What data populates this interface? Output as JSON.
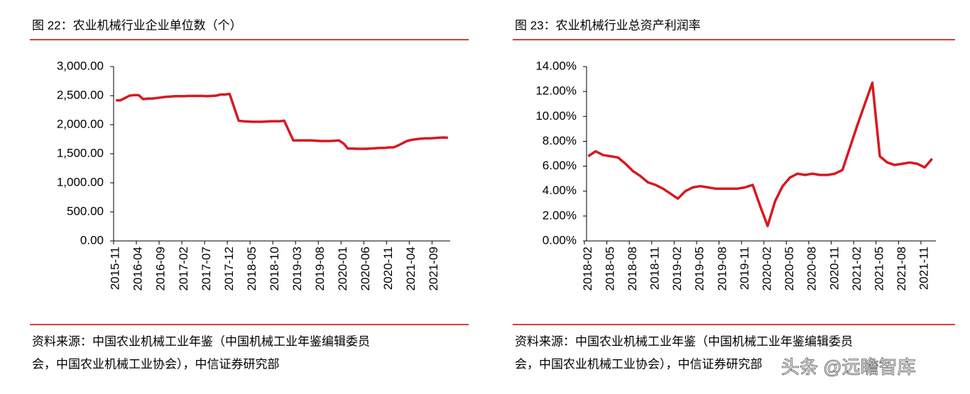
{
  "chart_data": [
    {
      "type": "line",
      "title": "图 22：农业机械行业企业单位数（个）",
      "categories": [
        "2015-11",
        null,
        null,
        null,
        null,
        "2016-04",
        null,
        null,
        null,
        null,
        "2016-09",
        null,
        null,
        null,
        null,
        "2017-02",
        null,
        null,
        null,
        null,
        "2017-07",
        null,
        null,
        null,
        null,
        "2017-12",
        null,
        null,
        null,
        null,
        "2018-05",
        null,
        null,
        null,
        null,
        "2018-10",
        null,
        null,
        null,
        null,
        "2019-03",
        null,
        null,
        null,
        null,
        "2019-08",
        null,
        null,
        null,
        null,
        "2020-01",
        null,
        null,
        null,
        null,
        "2020-06",
        null,
        null,
        null,
        null,
        "2020-11",
        null,
        null,
        null,
        null,
        "2021-04",
        null,
        null,
        null,
        null,
        "2021-09",
        null,
        null,
        null
      ],
      "values": [
        2420,
        2420,
        2460,
        2500,
        2510,
        2510,
        2440,
        2450,
        2450,
        2460,
        2470,
        2480,
        2485,
        2490,
        2490,
        2490,
        2495,
        2495,
        2495,
        2495,
        2490,
        2495,
        2500,
        2520,
        2520,
        2530,
        2300,
        2070,
        2060,
        2055,
        2050,
        2050,
        2050,
        2055,
        2060,
        2060,
        2060,
        2070,
        1900,
        1730,
        1730,
        1730,
        1730,
        1730,
        1725,
        1720,
        1720,
        1720,
        1725,
        1730,
        1680,
        1590,
        1590,
        1585,
        1585,
        1585,
        1590,
        1595,
        1600,
        1600,
        1610,
        1610,
        1640,
        1680,
        1720,
        1740,
        1750,
        1760,
        1765,
        1765,
        1770,
        1775,
        1780,
        1775
      ],
      "color": "#d71920",
      "ylim": [
        0,
        3000
      ],
      "yticks": [
        {
          "value": 0,
          "label": "0.00"
        },
        {
          "value": 500,
          "label": "500.00"
        },
        {
          "value": 1000,
          "label": "1,000.00"
        },
        {
          "value": 1500,
          "label": "1,500.00"
        },
        {
          "value": 2000,
          "label": "2,000.00"
        },
        {
          "value": 2500,
          "label": "2,500.00"
        },
        {
          "value": 3000,
          "label": "3,000.00"
        }
      ],
      "source": [
        "资料来源：中国农业机械工业年鉴（中国机械工业年鉴编辑委员",
        "会，中国农业机械工业协会），中信证券研究部"
      ]
    },
    {
      "type": "line",
      "title": "图 23：农业机械行业总资产利润率",
      "categories": [
        "2018-02",
        null,
        null,
        "2018-05",
        null,
        null,
        "2018-08",
        null,
        null,
        "2018-11",
        null,
        null,
        "2019-02",
        null,
        null,
        "2019-05",
        null,
        null,
        "2019-08",
        null,
        null,
        "2019-11",
        null,
        null,
        "2020-02",
        null,
        null,
        "2020-05",
        null,
        null,
        "2020-08",
        null,
        null,
        "2020-11",
        null,
        null,
        "2021-02",
        null,
        null,
        "2021-05",
        null,
        null,
        "2021-08",
        null,
        null,
        "2021-11",
        null
      ],
      "values": [
        6.8,
        7.2,
        6.9,
        6.8,
        6.7,
        6.2,
        5.6,
        5.2,
        4.7,
        4.5,
        4.2,
        3.8,
        3.4,
        4.0,
        4.3,
        4.4,
        4.3,
        4.2,
        4.2,
        4.2,
        4.2,
        4.3,
        4.5,
        2.8,
        1.2,
        3.2,
        4.4,
        5.1,
        5.4,
        5.3,
        5.4,
        5.3,
        5.3,
        5.4,
        5.7,
        7.5,
        9.3,
        11.0,
        12.7,
        6.8,
        6.3,
        6.1,
        6.2,
        6.3,
        6.2,
        5.9,
        6.6
      ],
      "color": "#d71920",
      "ylim": [
        0,
        14
      ],
      "yticks": [
        {
          "value": 0,
          "label": "0.00%"
        },
        {
          "value": 2,
          "label": "2.00%"
        },
        {
          "value": 4,
          "label": "4.00%"
        },
        {
          "value": 6,
          "label": "6.00%"
        },
        {
          "value": 8,
          "label": "8.00%"
        },
        {
          "value": 10,
          "label": "10.00%"
        },
        {
          "value": 12,
          "label": "12.00%"
        },
        {
          "value": 14,
          "label": "14.00%"
        }
      ],
      "source": [
        "资料来源：中国农业机械工业年鉴（中国机械工业年鉴编辑委员",
        "会，中国农业机械工业协会），中信证券研究部"
      ]
    }
  ],
  "watermark": "头条 @远瞻智库"
}
